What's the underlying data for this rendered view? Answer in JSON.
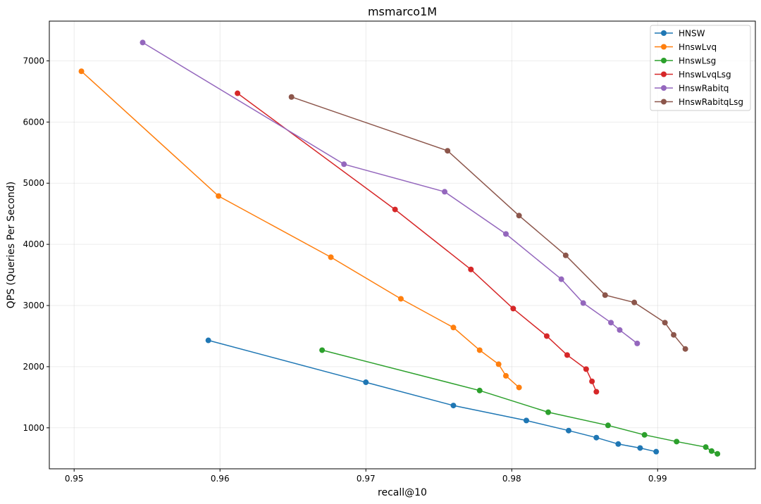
{
  "chart_data": {
    "type": "line",
    "title": "msmarco1M",
    "xlabel": "recall@10",
    "ylabel": "QPS (Queries Per Second)",
    "xlim": [
      0.9483,
      0.9967
    ],
    "ylim": [
      330,
      7650
    ],
    "xticks": [
      0.95,
      0.96,
      0.97,
      0.98,
      0.99
    ],
    "xtick_labels": [
      "0.95",
      "0.96",
      "0.97",
      "0.98",
      "0.99"
    ],
    "yticks": [
      1000,
      2000,
      3000,
      4000,
      5000,
      6000,
      7000
    ],
    "ytick_labels": [
      "1000",
      "2000",
      "3000",
      "4000",
      "5000",
      "6000",
      "7000"
    ],
    "grid": true,
    "legend_position": "top-right",
    "series": [
      {
        "name": "HNSW",
        "color": "#1f77b4",
        "x": [
          0.9592,
          0.97,
          0.976,
          0.981,
          0.9839,
          0.9858,
          0.9873,
          0.9888,
          0.9899
        ],
        "y": [
          2430,
          1745,
          1365,
          1120,
          955,
          840,
          735,
          670,
          610
        ]
      },
      {
        "name": "HnswLvq",
        "color": "#ff7f0e",
        "x": [
          0.9505,
          0.9599,
          0.9676,
          0.9724,
          0.976,
          0.9778,
          0.9791,
          0.9796,
          0.9805
        ],
        "y": [
          6830,
          4790,
          3790,
          3110,
          2640,
          2270,
          2040,
          1850,
          1660
        ]
      },
      {
        "name": "HnswLsg",
        "color": "#2ca02c",
        "x": [
          0.967,
          0.9778,
          0.9825,
          0.9866,
          0.9891,
          0.9913,
          0.9933,
          0.9937,
          0.9941
        ],
        "y": [
          2270,
          1610,
          1255,
          1040,
          885,
          775,
          685,
          620,
          575
        ]
      },
      {
        "name": "HnswLvqLsg",
        "color": "#d62728",
        "x": [
          0.9612,
          0.972,
          0.9772,
          0.9801,
          0.9824,
          0.9838,
          0.9851,
          0.9855,
          0.9858
        ],
        "y": [
          6470,
          4570,
          3590,
          2950,
          2500,
          2190,
          1960,
          1760,
          1590
        ]
      },
      {
        "name": "HnswRabitq",
        "color": "#9467bd",
        "x": [
          0.9547,
          0.9685,
          0.9754,
          0.9796,
          0.9834,
          0.9849,
          0.9868,
          0.9874,
          0.9886
        ],
        "y": [
          7300,
          5310,
          4860,
          4170,
          3430,
          3040,
          2720,
          2600,
          2380
        ]
      },
      {
        "name": "HnswRabitqLsg",
        "color": "#8c564b",
        "x": [
          0.9649,
          0.9756,
          0.9805,
          0.9837,
          0.9864,
          0.9884,
          0.9905,
          0.9911,
          0.9919
        ],
        "y": [
          6410,
          5530,
          4470,
          3820,
          3170,
          3050,
          2720,
          2520,
          2290
        ]
      }
    ]
  }
}
